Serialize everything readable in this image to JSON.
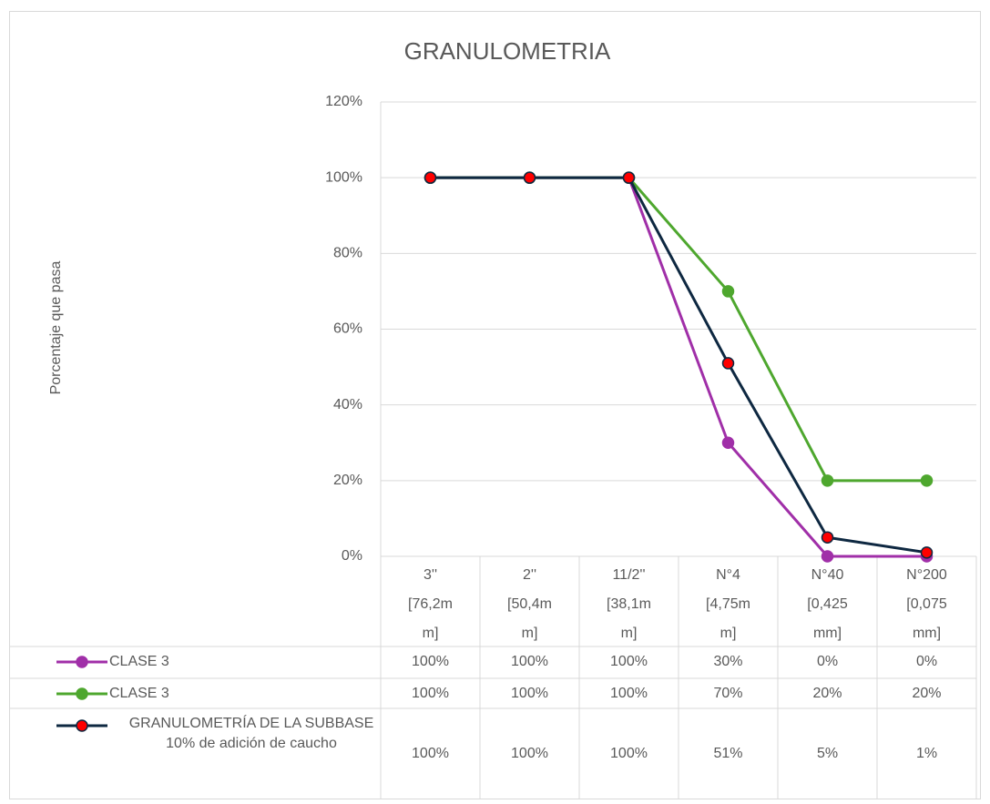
{
  "chart_data": {
    "type": "line",
    "title": "GRANULOMETRIA",
    "y_label": "Porcentaje que pasa",
    "categories": [
      [
        "3''",
        "[76,2m",
        "m]"
      ],
      [
        "2''",
        "[50,4m",
        "m]"
      ],
      [
        "11/2''",
        "[38,1m",
        "m]"
      ],
      [
        "N°4",
        "[4,75m",
        "m]"
      ],
      [
        "N°40",
        "[0,425",
        "mm]"
      ],
      [
        "N°200",
        "[0,075",
        "mm]"
      ]
    ],
    "ylim": [
      0,
      120
    ],
    "yticks": [
      {
        "value": 0,
        "label": "0%"
      },
      {
        "value": 20,
        "label": "20%"
      },
      {
        "value": 40,
        "label": "40%"
      },
      {
        "value": 60,
        "label": "60%"
      },
      {
        "value": 80,
        "label": "80%"
      },
      {
        "value": 100,
        "label": "100%"
      },
      {
        "value": 120,
        "label": "120%"
      }
    ],
    "grid": true,
    "series": [
      {
        "name": "CLASE 3",
        "color": "#a02fa8",
        "marker_color": "#a02fa8",
        "values": [
          100,
          100,
          100,
          30,
          0,
          0
        ],
        "value_labels": [
          "100%",
          "100%",
          "100%",
          "30%",
          "0%",
          "0%"
        ]
      },
      {
        "name": "CLASE 3",
        "color": "#4ea72e",
        "marker_color": "#4ea72e",
        "values": [
          100,
          100,
          100,
          70,
          20,
          20
        ],
        "value_labels": [
          "100%",
          "100%",
          "100%",
          "70%",
          "20%",
          "20%"
        ]
      },
      {
        "name": "GRANULOMETRÍA DE LA SUBBASE 10% de adición de caucho",
        "color": "#0e2841",
        "marker_color": "#ff0000",
        "values": [
          100,
          100,
          100,
          51,
          5,
          1
        ],
        "value_labels": [
          "100%",
          "100%",
          "100%",
          "51%",
          "5%",
          "1%"
        ]
      }
    ]
  }
}
